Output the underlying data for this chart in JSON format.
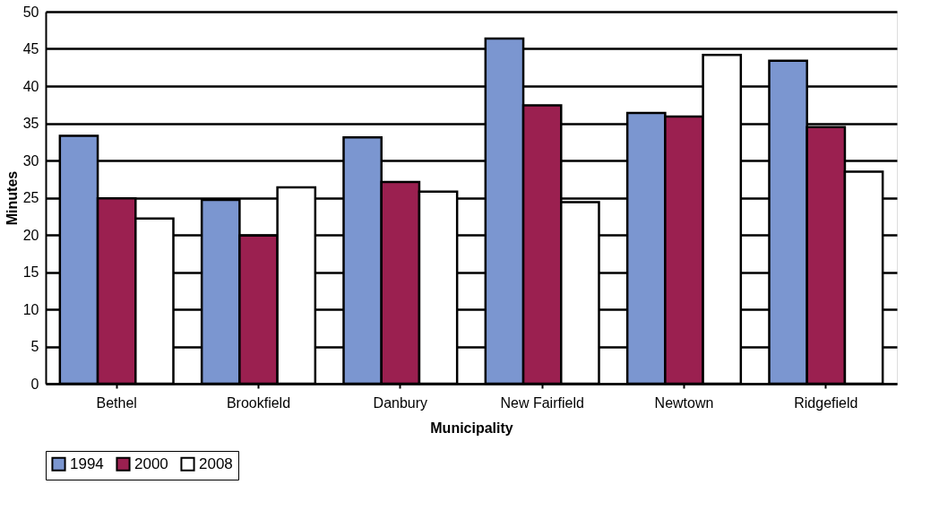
{
  "chart_data": {
    "type": "bar",
    "xlabel": "Municipality",
    "ylabel": "Minutes",
    "categories": [
      "Bethel",
      "Brookfield",
      "Danbury",
      "New Fairfield",
      "Newtown",
      "Ridgefield"
    ],
    "series": [
      {
        "name": "1994",
        "color": "#7b96d0",
        "values": [
          33.3,
          24.7,
          33.1,
          46.4,
          36.4,
          43.4
        ]
      },
      {
        "name": "2000",
        "color": "#9b2050",
        "values": [
          24.9,
          19.9,
          27.1,
          37.4,
          35.9,
          34.5
        ]
      },
      {
        "name": "2008",
        "color": "#ffffff",
        "values": [
          22.2,
          26.4,
          25.8,
          24.4,
          44.2,
          28.5
        ]
      }
    ],
    "ylim": [
      0,
      50
    ],
    "yticks": [
      0,
      5,
      10,
      15,
      20,
      25,
      30,
      35,
      40,
      45,
      50
    ],
    "grid": "y",
    "legend": "bottom"
  }
}
